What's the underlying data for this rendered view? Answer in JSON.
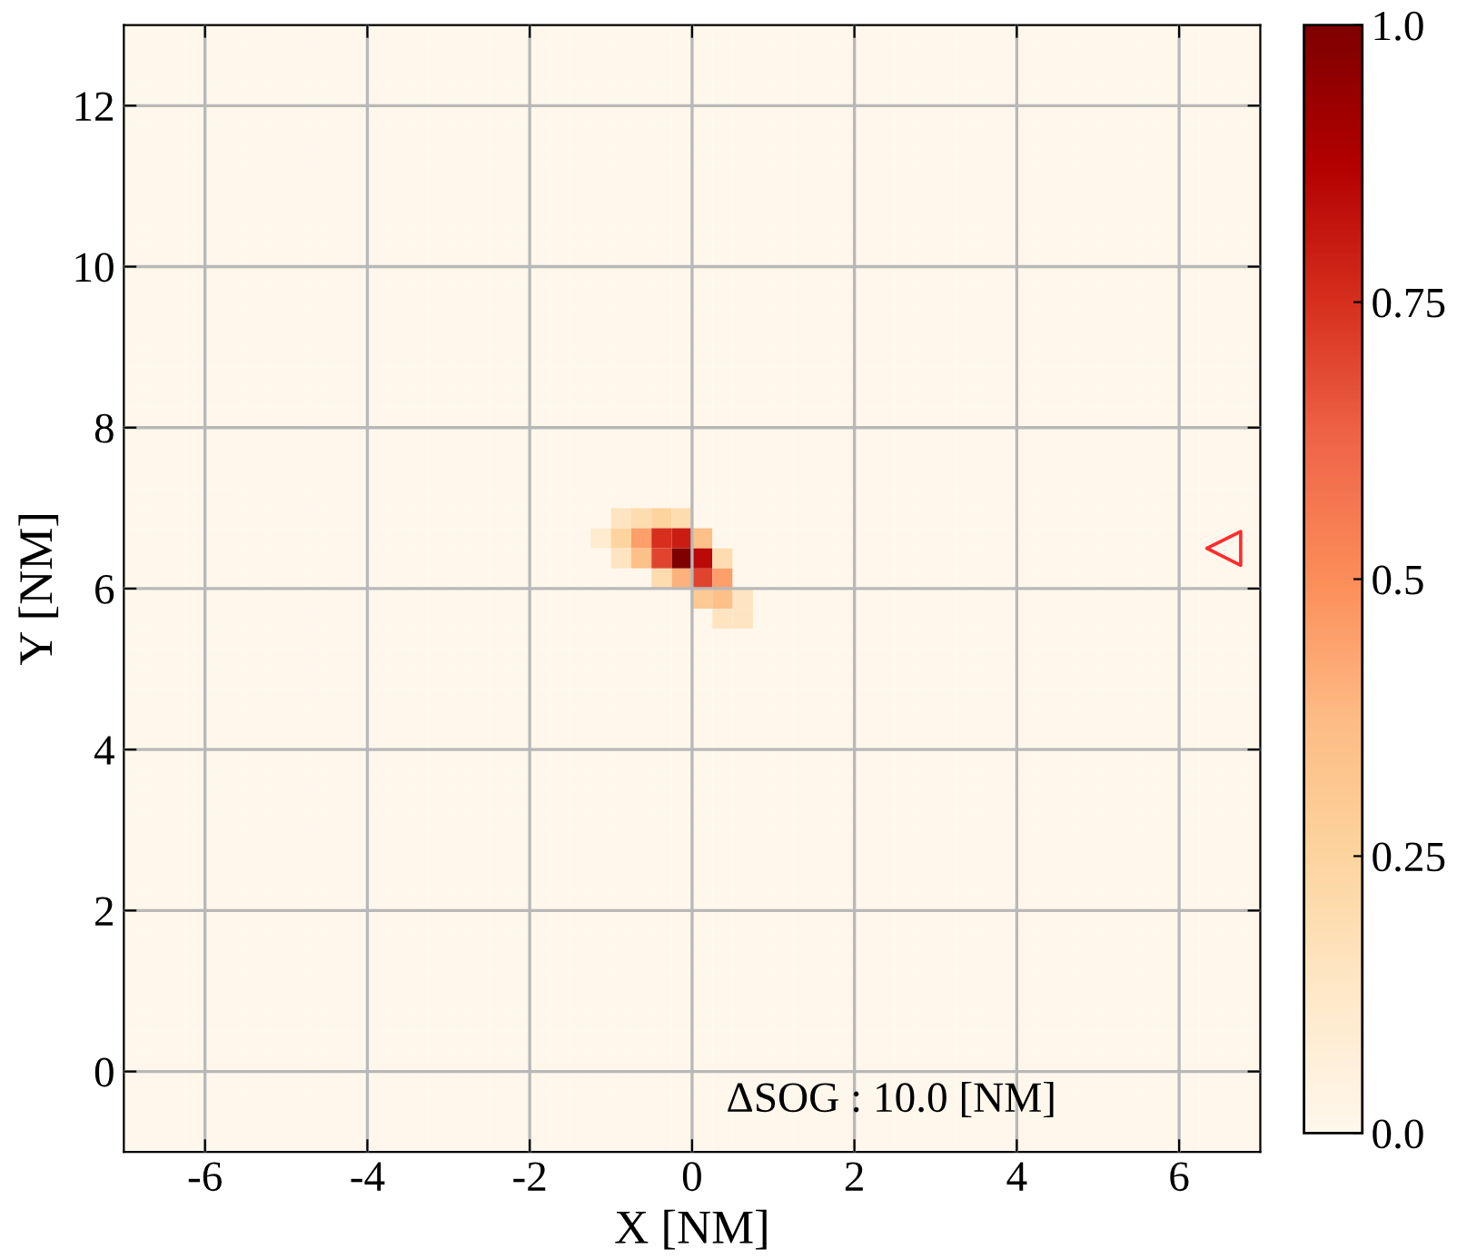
{
  "chart_data": {
    "type": "heatmap",
    "xlabel": "X [NM]",
    "ylabel": "Y [NM]",
    "xlim": [
      -7,
      7
    ],
    "ylim": [
      -1,
      13
    ],
    "xticks": [
      -6,
      -4,
      -2,
      0,
      2,
      4,
      6
    ],
    "yticks": [
      0,
      2,
      4,
      6,
      8,
      10,
      12
    ],
    "clim": [
      0,
      1
    ],
    "cticks": [
      {
        "value": 0,
        "label": "0.0"
      },
      0.25,
      0.5,
      0.75,
      {
        "value": 1,
        "label": "1.0"
      }
    ],
    "grid": true,
    "annotations": [
      "ΔSOG : 10.0 [NM]"
    ],
    "series": [
      {
        "type": "scatter",
        "x": [
          6.55
        ],
        "values": [
          6.5
        ],
        "color": "#ff2a2a",
        "marker": "triangle"
      }
    ],
    "cells": [
      [
        0,
        0,
        0,
        0,
        0,
        0,
        0,
        0,
        0,
        0,
        0,
        0,
        0,
        0,
        0,
        0,
        0,
        0,
        0,
        0,
        0,
        0,
        0,
        0,
        0,
        0,
        0,
        0,
        0,
        0,
        0,
        0,
        0,
        0,
        0,
        0,
        0,
        0,
        0,
        0,
        0,
        0,
        0,
        0,
        0,
        0,
        0,
        0,
        0,
        0,
        0,
        0,
        0,
        0,
        0,
        0
      ],
      [
        0,
        0,
        0,
        0,
        0,
        0,
        0,
        0,
        0,
        0,
        0,
        0,
        0,
        0,
        0,
        0,
        0,
        0,
        0,
        0,
        0,
        0,
        0,
        0,
        0,
        0,
        0,
        0,
        0,
        0,
        0,
        0,
        0,
        0,
        0,
        0,
        0,
        0,
        0,
        0,
        0,
        0,
        0,
        0,
        0,
        0,
        0,
        0,
        0,
        0,
        0,
        0,
        0,
        0,
        0,
        0
      ],
      [
        0,
        0,
        0,
        0,
        0,
        0,
        0,
        0,
        0,
        0,
        0,
        0,
        0,
        0,
        0,
        0,
        0,
        0,
        0,
        0,
        0,
        0,
        0,
        0,
        0,
        0,
        0,
        0,
        0,
        0,
        0,
        0,
        0,
        0,
        0,
        0,
        0,
        0,
        0,
        0,
        0,
        0,
        0,
        0,
        0,
        0,
        0,
        0,
        0,
        0,
        0,
        0,
        0,
        0,
        0,
        0
      ],
      [
        0,
        0,
        0,
        0,
        0,
        0,
        0,
        0,
        0,
        0,
        0,
        0,
        0,
        0,
        0,
        0,
        0,
        0,
        0,
        0,
        0,
        0,
        0,
        0,
        0,
        0,
        0,
        0,
        0,
        0,
        0,
        0,
        0,
        0,
        0,
        0,
        0,
        0,
        0,
        0,
        0,
        0,
        0,
        0,
        0,
        0,
        0,
        0,
        0,
        0,
        0,
        0,
        0,
        0,
        0,
        0
      ],
      [
        0,
        0,
        0,
        0,
        0,
        0,
        0,
        0,
        0,
        0,
        0,
        0,
        0,
        0,
        0,
        0,
        0,
        0,
        0,
        0,
        0,
        0,
        0,
        0,
        0,
        0,
        0,
        0,
        0,
        0,
        0,
        0,
        0,
        0,
        0,
        0,
        0,
        0,
        0,
        0,
        0,
        0,
        0,
        0,
        0,
        0,
        0,
        0,
        0,
        0,
        0,
        0,
        0,
        0,
        0,
        0
      ],
      [
        0,
        0,
        0,
        0,
        0,
        0,
        0,
        0,
        0,
        0,
        0,
        0,
        0,
        0,
        0,
        0,
        0,
        0,
        0,
        0,
        0,
        0,
        0,
        0,
        0,
        0,
        0,
        0,
        0,
        0,
        0,
        0,
        0,
        0,
        0,
        0,
        0,
        0,
        0,
        0,
        0,
        0,
        0,
        0,
        0,
        0,
        0,
        0,
        0,
        0,
        0,
        0,
        0,
        0,
        0,
        0
      ],
      [
        0,
        0,
        0,
        0,
        0,
        0,
        0,
        0,
        0,
        0,
        0,
        0,
        0,
        0,
        0,
        0,
        0,
        0,
        0,
        0,
        0,
        0,
        0,
        0,
        0,
        0,
        0,
        0,
        0,
        0,
        0,
        0,
        0,
        0,
        0,
        0,
        0,
        0,
        0,
        0,
        0,
        0,
        0,
        0,
        0,
        0,
        0,
        0,
        0,
        0,
        0,
        0,
        0,
        0,
        0,
        0
      ],
      [
        0,
        0,
        0,
        0,
        0,
        0,
        0,
        0,
        0,
        0,
        0,
        0,
        0,
        0,
        0,
        0,
        0,
        0,
        0,
        0,
        0,
        0,
        0,
        0,
        0,
        0,
        0,
        0,
        0,
        0,
        0,
        0,
        0,
        0,
        0,
        0,
        0,
        0,
        0,
        0,
        0,
        0,
        0,
        0,
        0,
        0,
        0,
        0,
        0,
        0,
        0,
        0,
        0,
        0,
        0,
        0
      ],
      [
        0,
        0,
        0,
        0,
        0,
        0,
        0,
        0,
        0,
        0,
        0,
        0,
        0,
        0,
        0,
        0,
        0,
        0,
        0,
        0,
        0,
        0,
        0,
        0,
        0,
        0,
        0,
        0,
        0,
        0,
        0,
        0,
        0,
        0,
        0,
        0,
        0,
        0,
        0,
        0,
        0,
        0,
        0,
        0,
        0,
        0,
        0,
        0,
        0,
        0,
        0,
        0,
        0,
        0,
        0,
        0
      ],
      [
        0,
        0,
        0,
        0,
        0,
        0,
        0,
        0,
        0,
        0,
        0,
        0,
        0,
        0,
        0,
        0,
        0,
        0,
        0,
        0,
        0,
        0,
        0,
        0,
        0,
        0,
        0,
        0,
        0,
        0,
        0,
        0,
        0,
        0,
        0,
        0,
        0,
        0,
        0,
        0,
        0,
        0,
        0,
        0,
        0,
        0,
        0,
        0,
        0,
        0,
        0,
        0,
        0,
        0,
        0,
        0
      ],
      [
        0,
        0,
        0,
        0,
        0,
        0,
        0,
        0,
        0,
        0,
        0,
        0,
        0,
        0,
        0,
        0,
        0,
        0,
        0,
        0,
        0,
        0,
        0,
        0,
        0,
        0,
        0,
        0,
        0,
        0,
        0,
        0,
        0,
        0,
        0,
        0,
        0,
        0,
        0,
        0,
        0,
        0,
        0,
        0,
        0,
        0,
        0,
        0,
        0,
        0,
        0,
        0,
        0,
        0,
        0,
        0
      ],
      [
        0,
        0,
        0,
        0,
        0,
        0,
        0,
        0,
        0,
        0,
        0,
        0,
        0,
        0,
        0,
        0,
        0,
        0,
        0,
        0,
        0,
        0,
        0,
        0,
        0,
        0,
        0,
        0,
        0,
        0,
        0,
        0,
        0,
        0,
        0,
        0,
        0,
        0,
        0,
        0,
        0,
        0,
        0,
        0,
        0,
        0,
        0,
        0,
        0,
        0,
        0,
        0,
        0,
        0,
        0,
        0
      ],
      [
        0,
        0,
        0,
        0,
        0,
        0,
        0,
        0,
        0,
        0,
        0,
        0,
        0,
        0,
        0,
        0,
        0,
        0,
        0,
        0,
        0,
        0,
        0,
        0,
        0,
        0,
        0,
        0,
        0,
        0,
        0,
        0,
        0,
        0,
        0,
        0,
        0,
        0,
        0,
        0,
        0,
        0,
        0,
        0,
        0,
        0,
        0,
        0,
        0,
        0,
        0,
        0,
        0,
        0,
        0,
        0
      ],
      [
        0,
        0,
        0,
        0,
        0,
        0,
        0,
        0,
        0,
        0,
        0,
        0,
        0,
        0,
        0,
        0,
        0,
        0,
        0,
        0,
        0,
        0,
        0,
        0,
        0,
        0,
        0,
        0,
        0,
        0,
        0,
        0,
        0,
        0,
        0,
        0,
        0,
        0,
        0,
        0,
        0,
        0,
        0,
        0,
        0,
        0,
        0,
        0,
        0,
        0,
        0,
        0,
        0,
        0,
        0,
        0
      ],
      [
        0,
        0,
        0,
        0,
        0,
        0,
        0,
        0,
        0,
        0,
        0,
        0,
        0,
        0,
        0,
        0,
        0,
        0,
        0,
        0,
        0,
        0,
        0,
        0,
        0,
        0,
        0,
        0,
        0,
        0,
        0,
        0,
        0,
        0,
        0,
        0,
        0,
        0,
        0,
        0,
        0,
        0,
        0,
        0,
        0,
        0,
        0,
        0,
        0,
        0,
        0,
        0,
        0,
        0,
        0,
        0
      ],
      [
        0,
        0,
        0,
        0,
        0,
        0,
        0,
        0,
        0,
        0,
        0,
        0,
        0,
        0,
        0,
        0,
        0,
        0,
        0,
        0,
        0,
        0,
        0,
        0,
        0,
        0,
        0,
        0,
        0,
        0,
        0,
        0,
        0,
        0,
        0,
        0,
        0,
        0,
        0,
        0,
        0,
        0,
        0,
        0,
        0,
        0,
        0,
        0,
        0,
        0,
        0,
        0,
        0,
        0,
        0,
        0
      ],
      [
        0,
        0,
        0,
        0,
        0,
        0,
        0,
        0,
        0,
        0,
        0,
        0,
        0,
        0,
        0,
        0,
        0,
        0,
        0,
        0,
        0,
        0,
        0,
        0,
        0,
        0,
        0,
        0,
        0,
        0,
        0,
        0,
        0,
        0,
        0,
        0,
        0,
        0,
        0,
        0,
        0,
        0,
        0,
        0,
        0,
        0,
        0,
        0,
        0,
        0,
        0,
        0,
        0,
        0,
        0,
        0
      ],
      [
        0,
        0,
        0,
        0,
        0,
        0,
        0,
        0,
        0,
        0,
        0,
        0,
        0,
        0,
        0,
        0,
        0,
        0,
        0,
        0,
        0,
        0,
        0,
        0,
        0,
        0,
        0,
        0,
        0,
        0,
        0,
        0,
        0,
        0,
        0,
        0,
        0,
        0,
        0,
        0,
        0,
        0,
        0,
        0,
        0,
        0,
        0,
        0,
        0,
        0,
        0,
        0,
        0,
        0,
        0,
        0
      ],
      [
        0,
        0,
        0,
        0,
        0,
        0,
        0,
        0,
        0,
        0,
        0,
        0,
        0,
        0,
        0,
        0,
        0,
        0,
        0,
        0,
        0,
        0,
        0,
        0,
        0,
        0,
        0,
        0,
        0,
        0,
        0,
        0,
        0,
        0,
        0,
        0,
        0,
        0,
        0,
        0,
        0,
        0,
        0,
        0,
        0,
        0,
        0,
        0,
        0,
        0,
        0,
        0,
        0,
        0,
        0,
        0
      ],
      [
        0,
        0,
        0,
        0,
        0,
        0,
        0,
        0,
        0,
        0,
        0,
        0,
        0,
        0,
        0,
        0,
        0,
        0,
        0,
        0,
        0,
        0,
        0,
        0,
        0,
        0,
        0,
        0,
        0,
        0,
        0,
        0,
        0,
        0,
        0,
        0,
        0,
        0,
        0,
        0,
        0,
        0,
        0,
        0,
        0,
        0,
        0,
        0,
        0,
        0,
        0,
        0,
        0,
        0,
        0,
        0
      ],
      [
        0,
        0,
        0,
        0,
        0,
        0,
        0,
        0,
        0,
        0,
        0,
        0,
        0,
        0,
        0,
        0,
        0,
        0,
        0,
        0,
        0,
        0,
        0,
        0,
        0,
        0,
        0,
        0,
        0,
        0,
        0,
        0,
        0,
        0,
        0,
        0,
        0,
        0,
        0,
        0,
        0,
        0,
        0,
        0,
        0,
        0,
        0,
        0,
        0,
        0,
        0,
        0,
        0,
        0,
        0,
        0
      ],
      [
        0,
        0,
        0,
        0,
        0,
        0,
        0,
        0,
        0,
        0,
        0,
        0,
        0,
        0,
        0,
        0,
        0,
        0,
        0,
        0,
        0,
        0,
        0,
        0,
        0,
        0,
        0,
        0,
        0,
        0,
        0,
        0,
        0,
        0,
        0,
        0,
        0,
        0,
        0,
        0,
        0,
        0,
        0,
        0,
        0,
        0,
        0,
        0,
        0,
        0,
        0,
        0,
        0,
        0,
        0,
        0
      ],
      [
        0,
        0,
        0,
        0,
        0,
        0,
        0,
        0,
        0,
        0,
        0,
        0,
        0,
        0,
        0,
        0,
        0,
        0,
        0,
        0,
        0,
        0,
        0,
        0,
        0,
        0,
        0,
        0,
        0,
        0,
        0,
        0,
        0,
        0,
        0,
        0,
        0,
        0,
        0,
        0,
        0,
        0,
        0,
        0,
        0,
        0,
        0,
        0,
        0,
        0,
        0,
        0,
        0,
        0,
        0,
        0
      ],
      [
        0,
        0,
        0,
        0,
        0,
        0,
        0,
        0,
        0,
        0,
        0,
        0,
        0,
        0,
        0,
        0,
        0,
        0,
        0,
        0,
        0,
        0,
        0,
        0,
        0,
        0,
        0,
        0,
        0,
        0,
        0,
        0,
        0,
        0,
        0,
        0,
        0,
        0,
        0,
        0,
        0,
        0,
        0,
        0,
        0,
        0,
        0,
        0,
        0,
        0,
        0,
        0,
        0,
        0,
        0,
        0
      ],
      [
        0,
        0,
        0,
        0,
        0,
        0,
        0,
        0,
        0,
        0,
        0,
        0,
        0,
        0,
        0,
        0,
        0,
        0,
        0,
        0,
        0,
        0,
        0,
        0,
        0.15,
        0.2,
        0.25,
        0.2,
        0,
        0,
        0,
        0,
        0,
        0,
        0,
        0,
        0,
        0,
        0,
        0,
        0,
        0,
        0,
        0,
        0,
        0,
        0,
        0,
        0,
        0,
        0,
        0,
        0,
        0,
        0,
        0
      ],
      [
        0,
        0,
        0,
        0,
        0,
        0,
        0,
        0,
        0,
        0,
        0,
        0,
        0,
        0,
        0,
        0,
        0,
        0,
        0,
        0,
        0,
        0,
        0,
        0.1,
        0.25,
        0.45,
        0.75,
        0.8,
        0.35,
        0,
        0,
        0,
        0,
        0,
        0,
        0,
        0,
        0,
        0,
        0,
        0,
        0,
        0,
        0,
        0,
        0,
        0,
        0,
        0,
        0,
        0,
        0,
        0,
        0,
        0,
        0
      ],
      [
        0,
        0,
        0,
        0,
        0,
        0,
        0,
        0,
        0,
        0,
        0,
        0,
        0,
        0,
        0,
        0,
        0,
        0,
        0,
        0,
        0,
        0,
        0,
        0,
        0.15,
        0.35,
        0.7,
        1.0,
        0.85,
        0.2,
        0,
        0,
        0,
        0,
        0,
        0,
        0,
        0,
        0,
        0,
        0,
        0,
        0,
        0,
        0,
        0,
        0,
        0,
        0,
        0,
        0,
        0,
        0,
        0,
        0,
        0
      ],
      [
        0,
        0,
        0,
        0,
        0,
        0,
        0,
        0,
        0,
        0,
        0,
        0,
        0,
        0,
        0,
        0,
        0,
        0,
        0,
        0,
        0,
        0,
        0,
        0,
        0,
        0,
        0.2,
        0.4,
        0.7,
        0.45,
        0,
        0,
        0,
        0,
        0,
        0,
        0,
        0,
        0,
        0,
        0,
        0,
        0,
        0,
        0,
        0,
        0,
        0,
        0,
        0,
        0,
        0,
        0,
        0,
        0,
        0
      ],
      [
        0,
        0,
        0,
        0,
        0,
        0,
        0,
        0,
        0,
        0,
        0,
        0,
        0,
        0,
        0,
        0,
        0,
        0,
        0,
        0,
        0,
        0,
        0,
        0,
        0,
        0,
        0,
        0,
        0.3,
        0.35,
        0.15,
        0,
        0,
        0,
        0,
        0,
        0,
        0,
        0,
        0,
        0,
        0,
        0,
        0,
        0,
        0,
        0,
        0,
        0,
        0,
        0,
        0,
        0,
        0,
        0,
        0
      ],
      [
        0,
        0,
        0,
        0,
        0,
        0,
        0,
        0,
        0,
        0,
        0,
        0,
        0,
        0,
        0,
        0,
        0,
        0,
        0,
        0,
        0,
        0,
        0,
        0,
        0,
        0,
        0,
        0,
        0,
        0.15,
        0.15,
        0,
        0,
        0,
        0,
        0,
        0,
        0,
        0,
        0,
        0,
        0,
        0,
        0,
        0,
        0,
        0,
        0,
        0,
        0,
        0,
        0,
        0,
        0,
        0,
        0
      ],
      [
        0,
        0,
        0,
        0,
        0,
        0,
        0,
        0,
        0,
        0,
        0,
        0,
        0,
        0,
        0,
        0,
        0,
        0,
        0,
        0,
        0,
        0,
        0,
        0,
        0,
        0,
        0,
        0,
        0,
        0,
        0,
        0,
        0,
        0,
        0,
        0,
        0,
        0,
        0,
        0,
        0,
        0,
        0,
        0,
        0,
        0,
        0,
        0,
        0,
        0,
        0,
        0,
        0,
        0,
        0,
        0
      ],
      [
        0,
        0,
        0,
        0,
        0,
        0,
        0,
        0,
        0,
        0,
        0,
        0,
        0,
        0,
        0,
        0,
        0,
        0,
        0,
        0,
        0,
        0,
        0,
        0,
        0,
        0,
        0,
        0,
        0,
        0,
        0,
        0,
        0,
        0,
        0,
        0,
        0,
        0,
        0,
        0,
        0,
        0,
        0,
        0,
        0,
        0,
        0,
        0,
        0,
        0,
        0,
        0,
        0,
        0,
        0,
        0
      ],
      [
        0,
        0,
        0,
        0,
        0,
        0,
        0,
        0,
        0,
        0,
        0,
        0,
        0,
        0,
        0,
        0,
        0,
        0,
        0,
        0,
        0,
        0,
        0,
        0,
        0,
        0,
        0,
        0,
        0,
        0,
        0,
        0,
        0,
        0,
        0,
        0,
        0,
        0,
        0,
        0,
        0,
        0,
        0,
        0,
        0,
        0,
        0,
        0,
        0,
        0,
        0,
        0,
        0,
        0,
        0,
        0
      ],
      [
        0,
        0,
        0,
        0,
        0,
        0,
        0,
        0,
        0,
        0,
        0,
        0,
        0,
        0,
        0,
        0,
        0,
        0,
        0,
        0,
        0,
        0,
        0,
        0,
        0,
        0,
        0,
        0,
        0,
        0,
        0,
        0,
        0,
        0,
        0,
        0,
        0,
        0,
        0,
        0,
        0,
        0,
        0,
        0,
        0,
        0,
        0,
        0,
        0,
        0,
        0,
        0,
        0,
        0,
        0,
        0
      ],
      [
        0,
        0,
        0,
        0,
        0,
        0,
        0,
        0,
        0,
        0,
        0,
        0,
        0,
        0,
        0,
        0,
        0,
        0,
        0,
        0,
        0,
        0,
        0,
        0,
        0,
        0,
        0,
        0,
        0,
        0,
        0,
        0,
        0,
        0,
        0,
        0,
        0,
        0,
        0,
        0,
        0,
        0,
        0,
        0,
        0,
        0,
        0,
        0,
        0,
        0,
        0,
        0,
        0,
        0,
        0,
        0
      ],
      [
        0,
        0,
        0,
        0,
        0,
        0,
        0,
        0,
        0,
        0,
        0,
        0,
        0,
        0,
        0,
        0,
        0,
        0,
        0,
        0,
        0,
        0,
        0,
        0,
        0,
        0,
        0,
        0,
        0,
        0,
        0,
        0,
        0,
        0,
        0,
        0,
        0,
        0,
        0,
        0,
        0,
        0,
        0,
        0,
        0,
        0,
        0,
        0,
        0,
        0,
        0,
        0,
        0,
        0,
        0,
        0
      ],
      [
        0,
        0,
        0,
        0,
        0,
        0,
        0,
        0,
        0,
        0,
        0,
        0,
        0,
        0,
        0,
        0,
        0,
        0,
        0,
        0,
        0,
        0,
        0,
        0,
        0,
        0,
        0,
        0,
        0,
        0,
        0,
        0,
        0,
        0,
        0,
        0,
        0,
        0,
        0,
        0,
        0,
        0,
        0,
        0,
        0,
        0,
        0,
        0,
        0,
        0,
        0,
        0,
        0,
        0,
        0,
        0
      ],
      [
        0,
        0,
        0,
        0,
        0,
        0,
        0,
        0,
        0,
        0,
        0,
        0,
        0,
        0,
        0,
        0,
        0,
        0,
        0,
        0,
        0,
        0,
        0,
        0,
        0,
        0,
        0,
        0,
        0,
        0,
        0,
        0,
        0,
        0,
        0,
        0,
        0,
        0,
        0,
        0,
        0,
        0,
        0,
        0,
        0,
        0,
        0,
        0,
        0,
        0,
        0,
        0,
        0,
        0,
        0,
        0
      ],
      [
        0,
        0,
        0,
        0,
        0,
        0,
        0,
        0,
        0,
        0,
        0,
        0,
        0,
        0,
        0,
        0,
        0,
        0,
        0,
        0,
        0,
        0,
        0,
        0,
        0,
        0,
        0,
        0,
        0,
        0,
        0,
        0,
        0,
        0,
        0,
        0,
        0,
        0,
        0,
        0,
        0,
        0,
        0,
        0,
        0,
        0,
        0,
        0,
        0,
        0,
        0,
        0,
        0,
        0,
        0,
        0
      ],
      [
        0,
        0,
        0,
        0,
        0,
        0,
        0,
        0,
        0,
        0,
        0,
        0,
        0,
        0,
        0,
        0,
        0,
        0,
        0,
        0,
        0,
        0,
        0,
        0,
        0,
        0,
        0,
        0,
        0,
        0,
        0,
        0,
        0,
        0,
        0,
        0,
        0,
        0,
        0,
        0,
        0,
        0,
        0,
        0,
        0,
        0,
        0,
        0,
        0,
        0,
        0,
        0,
        0,
        0,
        0,
        0
      ],
      [
        0,
        0,
        0,
        0,
        0,
        0,
        0,
        0,
        0,
        0,
        0,
        0,
        0,
        0,
        0,
        0,
        0,
        0,
        0,
        0,
        0,
        0,
        0,
        0,
        0,
        0,
        0,
        0,
        0,
        0,
        0,
        0,
        0,
        0,
        0,
        0,
        0,
        0,
        0,
        0,
        0,
        0,
        0,
        0,
        0,
        0,
        0,
        0,
        0,
        0,
        0,
        0,
        0,
        0,
        0,
        0
      ],
      [
        0,
        0,
        0,
        0,
        0,
        0,
        0,
        0,
        0,
        0,
        0,
        0,
        0,
        0,
        0,
        0,
        0,
        0,
        0,
        0,
        0,
        0,
        0,
        0,
        0,
        0,
        0,
        0,
        0,
        0,
        0,
        0,
        0,
        0,
        0,
        0,
        0,
        0,
        0,
        0,
        0,
        0,
        0,
        0,
        0,
        0,
        0,
        0,
        0,
        0,
        0,
        0,
        0,
        0,
        0,
        0
      ],
      [
        0,
        0,
        0,
        0,
        0,
        0,
        0,
        0,
        0,
        0,
        0,
        0,
        0,
        0,
        0,
        0,
        0,
        0,
        0,
        0,
        0,
        0,
        0,
        0,
        0,
        0,
        0,
        0,
        0,
        0,
        0,
        0,
        0,
        0,
        0,
        0,
        0,
        0,
        0,
        0,
        0,
        0,
        0,
        0,
        0,
        0,
        0,
        0,
        0,
        0,
        0,
        0,
        0,
        0,
        0,
        0
      ],
      [
        0,
        0,
        0,
        0,
        0,
        0,
        0,
        0,
        0,
        0,
        0,
        0,
        0,
        0,
        0,
        0,
        0,
        0,
        0,
        0,
        0,
        0,
        0,
        0,
        0,
        0,
        0,
        0,
        0,
        0,
        0,
        0,
        0,
        0,
        0,
        0,
        0,
        0,
        0,
        0,
        0,
        0,
        0,
        0,
        0,
        0,
        0,
        0,
        0,
        0,
        0,
        0,
        0,
        0,
        0,
        0
      ],
      [
        0,
        0,
        0,
        0,
        0,
        0,
        0,
        0,
        0,
        0,
        0,
        0,
        0,
        0,
        0,
        0,
        0,
        0,
        0,
        0,
        0,
        0,
        0,
        0,
        0,
        0,
        0,
        0,
        0,
        0,
        0,
        0,
        0,
        0,
        0,
        0,
        0,
        0,
        0,
        0,
        0,
        0,
        0,
        0,
        0,
        0,
        0,
        0,
        0,
        0,
        0,
        0,
        0,
        0,
        0,
        0
      ],
      [
        0,
        0,
        0,
        0,
        0,
        0,
        0,
        0,
        0,
        0,
        0,
        0,
        0,
        0,
        0,
        0,
        0,
        0,
        0,
        0,
        0,
        0,
        0,
        0,
        0,
        0,
        0,
        0,
        0,
        0,
        0,
        0,
        0,
        0,
        0,
        0,
        0,
        0,
        0,
        0,
        0,
        0,
        0,
        0,
        0,
        0,
        0,
        0,
        0,
        0,
        0,
        0,
        0,
        0,
        0,
        0
      ],
      [
        0,
        0,
        0,
        0,
        0,
        0,
        0,
        0,
        0,
        0,
        0,
        0,
        0,
        0,
        0,
        0,
        0,
        0,
        0,
        0,
        0,
        0,
        0,
        0,
        0,
        0,
        0,
        0,
        0,
        0,
        0,
        0,
        0,
        0,
        0,
        0,
        0,
        0,
        0,
        0,
        0,
        0,
        0,
        0,
        0,
        0,
        0,
        0,
        0,
        0,
        0,
        0,
        0,
        0,
        0,
        0
      ],
      [
        0,
        0,
        0,
        0,
        0,
        0,
        0,
        0,
        0,
        0,
        0,
        0,
        0,
        0,
        0,
        0,
        0,
        0,
        0,
        0,
        0,
        0,
        0,
        0,
        0,
        0,
        0,
        0,
        0,
        0,
        0,
        0,
        0,
        0,
        0,
        0,
        0,
        0,
        0,
        0,
        0,
        0,
        0,
        0,
        0,
        0,
        0,
        0,
        0,
        0,
        0,
        0,
        0,
        0,
        0,
        0
      ],
      [
        0,
        0,
        0,
        0,
        0,
        0,
        0,
        0,
        0,
        0,
        0,
        0,
        0,
        0,
        0,
        0,
        0,
        0,
        0,
        0,
        0,
        0,
        0,
        0,
        0,
        0,
        0,
        0,
        0,
        0,
        0,
        0,
        0,
        0,
        0,
        0,
        0,
        0,
        0,
        0,
        0,
        0,
        0,
        0,
        0,
        0,
        0,
        0,
        0,
        0,
        0,
        0,
        0,
        0,
        0,
        0
      ],
      [
        0,
        0,
        0,
        0,
        0,
        0,
        0,
        0,
        0,
        0,
        0,
        0,
        0,
        0,
        0,
        0,
        0,
        0,
        0,
        0,
        0,
        0,
        0,
        0,
        0,
        0,
        0,
        0,
        0,
        0,
        0,
        0,
        0,
        0,
        0,
        0,
        0,
        0,
        0,
        0,
        0,
        0,
        0,
        0,
        0,
        0,
        0,
        0,
        0,
        0,
        0,
        0,
        0,
        0,
        0,
        0
      ],
      [
        0,
        0,
        0,
        0,
        0,
        0,
        0,
        0,
        0,
        0,
        0,
        0,
        0,
        0,
        0,
        0,
        0,
        0,
        0,
        0,
        0,
        0,
        0,
        0,
        0,
        0,
        0,
        0,
        0,
        0,
        0,
        0,
        0,
        0,
        0,
        0,
        0,
        0,
        0,
        0,
        0,
        0,
        0,
        0,
        0,
        0,
        0,
        0,
        0,
        0,
        0,
        0,
        0,
        0,
        0,
        0
      ],
      [
        0,
        0,
        0,
        0,
        0,
        0,
        0,
        0,
        0,
        0,
        0,
        0,
        0,
        0,
        0,
        0,
        0,
        0,
        0,
        0,
        0,
        0,
        0,
        0,
        0,
        0,
        0,
        0,
        0,
        0,
        0,
        0,
        0,
        0,
        0,
        0,
        0,
        0,
        0,
        0,
        0,
        0,
        0,
        0,
        0,
        0,
        0,
        0,
        0,
        0,
        0,
        0,
        0,
        0,
        0,
        0
      ],
      [
        0,
        0,
        0,
        0,
        0,
        0,
        0,
        0,
        0,
        0,
        0,
        0,
        0,
        0,
        0,
        0,
        0,
        0,
        0,
        0,
        0,
        0,
        0,
        0,
        0,
        0,
        0,
        0,
        0,
        0,
        0,
        0,
        0,
        0,
        0,
        0,
        0,
        0,
        0,
        0,
        0,
        0,
        0,
        0,
        0,
        0,
        0,
        0,
        0,
        0,
        0,
        0,
        0,
        0,
        0,
        0
      ],
      [
        0,
        0,
        0,
        0,
        0,
        0,
        0,
        0,
        0,
        0,
        0,
        0,
        0,
        0,
        0,
        0,
        0,
        0,
        0,
        0,
        0,
        0,
        0,
        0,
        0,
        0,
        0,
        0,
        0,
        0,
        0,
        0,
        0,
        0,
        0,
        0,
        0,
        0,
        0,
        0,
        0,
        0,
        0,
        0,
        0,
        0,
        0,
        0,
        0,
        0,
        0,
        0,
        0,
        0,
        0,
        0
      ],
      [
        0,
        0,
        0,
        0,
        0,
        0,
        0,
        0,
        0,
        0,
        0,
        0,
        0,
        0,
        0,
        0,
        0,
        0,
        0,
        0,
        0,
        0,
        0,
        0,
        0,
        0,
        0,
        0,
        0,
        0,
        0,
        0,
        0,
        0,
        0,
        0,
        0,
        0,
        0,
        0,
        0,
        0,
        0,
        0,
        0,
        0,
        0,
        0,
        0,
        0,
        0,
        0,
        0,
        0,
        0,
        0
      ],
      [
        0,
        0,
        0,
        0,
        0,
        0,
        0,
        0,
        0,
        0,
        0,
        0,
        0,
        0,
        0,
        0,
        0,
        0,
        0,
        0,
        0,
        0,
        0,
        0,
        0,
        0,
        0,
        0,
        0,
        0,
        0,
        0,
        0,
        0,
        0,
        0,
        0,
        0,
        0,
        0,
        0,
        0,
        0,
        0,
        0,
        0,
        0,
        0,
        0,
        0,
        0,
        0,
        0,
        0,
        0,
        0
      ]
    ]
  }
}
